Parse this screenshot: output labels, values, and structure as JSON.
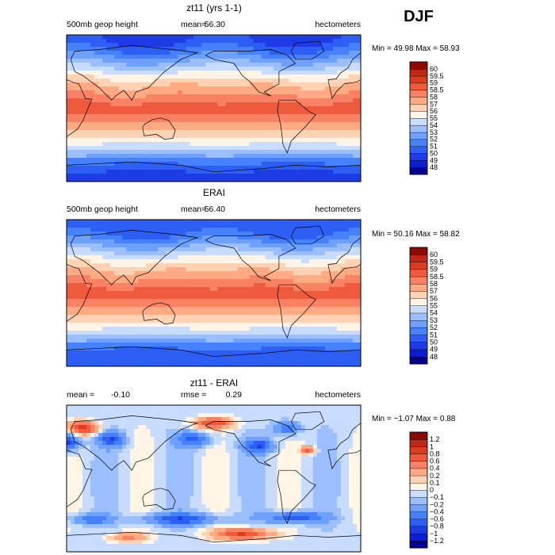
{
  "season_label": "DJF",
  "chart_data": [
    {
      "type": "heatmap",
      "title": "zt11 (yrs 1-1)",
      "left_label": "500mb geop height",
      "stat1_label": "mean=",
      "stat1_value": "56.30",
      "stat2_label": "",
      "stat2_value": "",
      "units": "hectometers",
      "range_text": "Min =  49.98 Max =  58.93",
      "min": 49.98,
      "max": 58.93,
      "levels": [
        "48",
        "49",
        "50",
        "51",
        "52",
        "53",
        "54",
        "55",
        "56",
        "57",
        "58",
        "58.5",
        "59",
        "59.5",
        "60"
      ],
      "colors": [
        "#06008c",
        "#0d1ed2",
        "#1e3ce6",
        "#2d5ff5",
        "#4682ff",
        "#6ea0ff",
        "#9bbeff",
        "#c8dcff",
        "#fff5e6",
        "#ffd2b4",
        "#ffaa82",
        "#fa8264",
        "#f05a3c",
        "#dc3c1e",
        "#be2814",
        "#8c0a00"
      ],
      "field": "mean"
    },
    {
      "type": "heatmap",
      "title": "ERAI",
      "left_label": "500mb geop height",
      "stat1_label": "mean=",
      "stat1_value": "56.40",
      "stat2_label": "",
      "stat2_value": "",
      "units": "hectometers",
      "range_text": "Min =  50.16 Max =  58.82",
      "min": 50.16,
      "max": 58.82,
      "levels": [
        "48",
        "49",
        "50",
        "51",
        "52",
        "53",
        "54",
        "55",
        "56",
        "57",
        "58",
        "58.5",
        "59",
        "59.5",
        "60"
      ],
      "colors": [
        "#06008c",
        "#0d1ed2",
        "#1e3ce6",
        "#2d5ff5",
        "#4682ff",
        "#6ea0ff",
        "#9bbeff",
        "#c8dcff",
        "#fff5e6",
        "#ffd2b4",
        "#ffaa82",
        "#fa8264",
        "#f05a3c",
        "#dc3c1e",
        "#be2814",
        "#8c0a00"
      ],
      "field": "mean"
    },
    {
      "type": "heatmap",
      "title": "zt11 - ERAI",
      "left_label": "",
      "stat1_label": "mean =",
      "stat1_value": "-0.10",
      "stat2_label": "rmse =",
      "stat2_value": "0.29",
      "units": "hectometers",
      "range_text": "Min = −1.07 Max =  0.88",
      "min": -1.07,
      "max": 0.88,
      "levels": [
        "−1.2",
        "−1",
        "−0.8",
        "−0.6",
        "−0.4",
        "−0.2",
        "−0.1",
        "0",
        "0.1",
        "0.2",
        "0.4",
        "0.6",
        "0.8",
        "1",
        "1.2"
      ],
      "colors": [
        "#06008c",
        "#0d1ed2",
        "#1e3ce6",
        "#2d5ff5",
        "#4682ff",
        "#6ea0ff",
        "#9bbeff",
        "#c8dcff",
        "#fff5e6",
        "#ffd2b4",
        "#ffaa82",
        "#fa8264",
        "#f05a3c",
        "#dc3c1e",
        "#be2814",
        "#8c0a00"
      ],
      "field": "diff"
    }
  ]
}
